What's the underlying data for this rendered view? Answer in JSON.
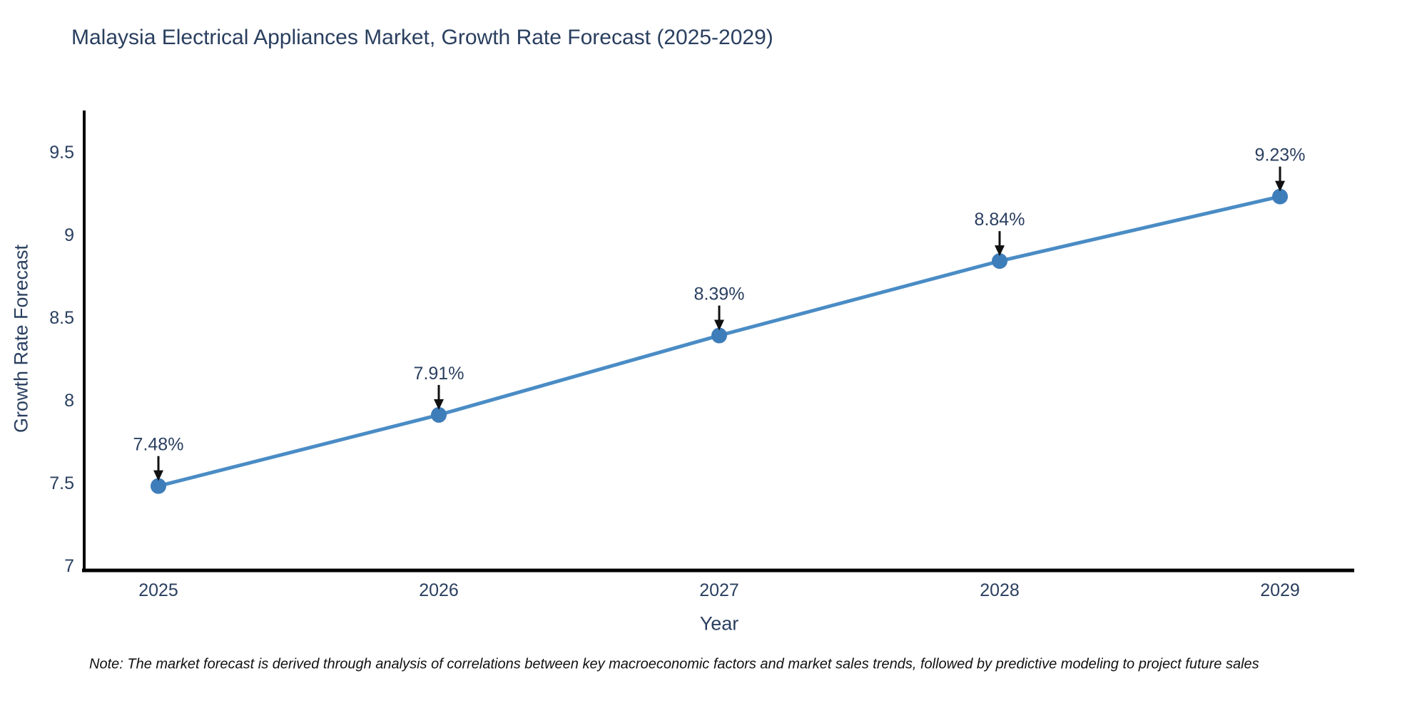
{
  "chart_data": {
    "type": "line",
    "title": "Malaysia Electrical Appliances Market, Growth Rate Forecast (2025-2029)",
    "xlabel": "Year",
    "ylabel": "Growth Rate Forecast",
    "categories": [
      "2025",
      "2026",
      "2027",
      "2028",
      "2029"
    ],
    "series": [
      {
        "name": "Growth Rate Forecast (%)",
        "values": [
          7.48,
          7.91,
          8.39,
          8.84,
          9.23
        ]
      }
    ],
    "point_labels": [
      "7.48%",
      "7.91%",
      "8.39%",
      "8.84%",
      "9.23%"
    ],
    "yticks": [
      7,
      7.5,
      8,
      8.5,
      9,
      9.5
    ],
    "ytick_labels": [
      "7",
      "7.5",
      "8",
      "8.5",
      "9",
      "9.5"
    ],
    "ylim": [
      6.97,
      9.75
    ],
    "grid": false,
    "legend": "none",
    "annotation_style": "down-arrow-to-point",
    "colors": {
      "line": "#4a8cc5",
      "marker": "#3d7db9",
      "text": "#2a3f5f",
      "axis": "#000000",
      "annotation_arrow": "#111111"
    }
  },
  "note": "Note: The market forecast is derived through analysis of correlations between key macroeconomic factors and market sales trends, followed by predictive modeling to project future sales"
}
